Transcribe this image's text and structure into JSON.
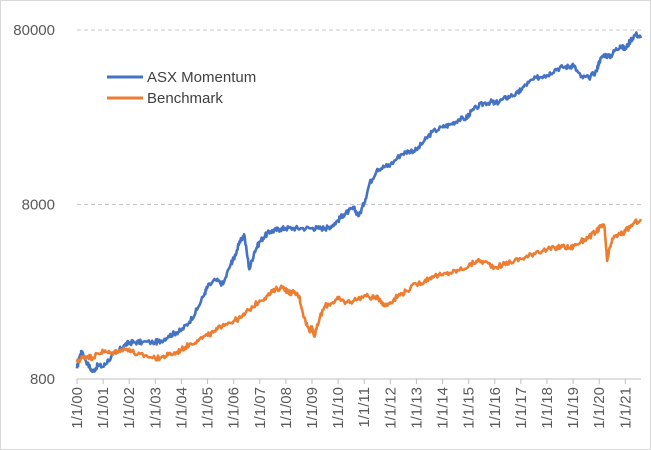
{
  "chart_data": {
    "type": "line",
    "title": "",
    "xlabel": "",
    "ylabel": "",
    "y_scale": "log",
    "ylim": [
      800,
      80000
    ],
    "y_ticks": [
      800,
      8000,
      80000
    ],
    "y_tick_labels": [
      "800",
      "8000",
      "80000"
    ],
    "x_ticks": [
      2000,
      2001,
      2002,
      2003,
      2004,
      2005,
      2006,
      2007,
      2008,
      2009,
      2010,
      2011,
      2012,
      2013,
      2014,
      2015,
      2016,
      2017,
      2018,
      2019,
      2020,
      2021
    ],
    "x_tick_labels": [
      "1/1/00",
      "1/1/01",
      "1/1/02",
      "1/1/03",
      "1/1/04",
      "1/1/05",
      "1/1/06",
      "1/1/07",
      "1/1/08",
      "1/1/09",
      "1/1/10",
      "1/1/11",
      "1/1/12",
      "1/1/13",
      "1/1/14",
      "1/1/15",
      "1/1/16",
      "1/1/17",
      "1/1/18",
      "1/1/19",
      "1/1/20",
      "1/1/21"
    ],
    "xlim": [
      2000,
      2021.6
    ],
    "grid": "horizontal dashed",
    "legend_position": "top-left",
    "series": [
      {
        "name": "ASX Momentum",
        "color": "#4472c4",
        "x": [
          2000.0,
          2000.1,
          2000.2,
          2000.4,
          2000.6,
          2000.8,
          2001.0,
          2001.2,
          2001.5,
          2001.8,
          2002.0,
          2002.2,
          2002.5,
          2003.0,
          2003.2,
          2003.5,
          2003.8,
          2004.0,
          2004.3,
          2004.6,
          2004.9,
          2005.0,
          2005.3,
          2005.6,
          2005.9,
          2006.0,
          2006.2,
          2006.4,
          2006.6,
          2006.8,
          2007.0,
          2007.2,
          2007.4,
          2007.6,
          2007.8,
          2008.0,
          2008.3,
          2008.6,
          2009.0,
          2009.2,
          2009.5,
          2009.6,
          2009.8,
          2010.0,
          2010.2,
          2010.4,
          2010.6,
          2010.8,
          2011.0,
          2011.2,
          2011.5,
          2011.8,
          2012.0,
          2012.4,
          2012.7,
          2013.0,
          2013.3,
          2013.6,
          2014.0,
          2014.3,
          2014.6,
          2014.9,
          2015.0,
          2015.3,
          2015.6,
          2015.9,
          2016.0,
          2016.3,
          2016.6,
          2016.9,
          2017.0,
          2017.3,
          2017.6,
          2017.9,
          2018.0,
          2018.3,
          2018.6,
          2018.9,
          2019.0,
          2019.3,
          2019.6,
          2019.9,
          2020.0,
          2020.2,
          2020.4,
          2020.6,
          2020.8,
          2021.0,
          2021.2,
          2021.4,
          2021.6
        ],
        "values": [
          920,
          1080,
          1150,
          980,
          880,
          960,
          940,
          1030,
          1120,
          1250,
          1290,
          1300,
          1300,
          1300,
          1320,
          1410,
          1480,
          1520,
          1700,
          2000,
          2500,
          2700,
          2950,
          2800,
          3700,
          3900,
          4700,
          5400,
          3400,
          4300,
          4900,
          5300,
          5600,
          5700,
          5800,
          5850,
          5850,
          5850,
          5850,
          5850,
          5850,
          5900,
          6100,
          6500,
          7000,
          7300,
          7600,
          6900,
          8200,
          10500,
          12800,
          13200,
          13500,
          15500,
          16200,
          16400,
          18500,
          20800,
          22200,
          23000,
          24500,
          25000,
          26200,
          28800,
          30500,
          31000,
          30200,
          32000,
          33500,
          34800,
          36500,
          40000,
          42500,
          44000,
          44000,
          47500,
          49000,
          49500,
          50500,
          43000,
          42500,
          46500,
          53000,
          58000,
          56000,
          61000,
          65000,
          62000,
          70000,
          76000,
          72000
        ]
      },
      {
        "name": "Benchmark",
        "color": "#ed7d31",
        "x": [
          2000.0,
          2000.2,
          2000.4,
          2000.6,
          2000.8,
          2001.0,
          2001.3,
          2001.6,
          2002.0,
          2002.3,
          2002.6,
          2003.0,
          2003.2,
          2003.5,
          2003.8,
          2004.0,
          2004.3,
          2004.6,
          2005.0,
          2005.3,
          2005.6,
          2006.0,
          2006.3,
          2006.6,
          2007.0,
          2007.3,
          2007.6,
          2007.9,
          2008.1,
          2008.3,
          2008.5,
          2008.7,
          2008.9,
          2009.0,
          2009.1,
          2009.3,
          2009.5,
          2009.8,
          2010.0,
          2010.3,
          2010.6,
          2011.0,
          2011.3,
          2011.6,
          2011.8,
          2012.0,
          2012.3,
          2012.6,
          2013.0,
          2013.3,
          2013.6,
          2014.0,
          2014.3,
          2014.6,
          2015.0,
          2015.3,
          2015.6,
          2016.0,
          2016.3,
          2016.6,
          2017.0,
          2017.3,
          2017.6,
          2018.0,
          2018.3,
          2018.6,
          2018.9,
          2019.0,
          2019.3,
          2019.6,
          2019.9,
          2020.0,
          2020.2,
          2020.3,
          2020.5,
          2020.8,
          2021.0,
          2021.3,
          2021.6
        ],
        "values": [
          1000,
          1060,
          1080,
          1060,
          1120,
          1150,
          1120,
          1170,
          1190,
          1100,
          1090,
          1050,
          1060,
          1100,
          1130,
          1180,
          1260,
          1330,
          1420,
          1500,
          1650,
          1720,
          1800,
          2000,
          2250,
          2400,
          2600,
          2700,
          2500,
          2500,
          2400,
          1800,
          1500,
          1600,
          1400,
          1800,
          2100,
          2200,
          2300,
          2200,
          2250,
          2400,
          2350,
          2300,
          2100,
          2200,
          2400,
          2550,
          2800,
          2900,
          3100,
          3150,
          3250,
          3350,
          3550,
          3800,
          3750,
          3500,
          3600,
          3750,
          3900,
          4050,
          4300,
          4400,
          4500,
          4600,
          4500,
          4600,
          4900,
          5200,
          5600,
          5900,
          6000,
          3800,
          5100,
          5400,
          5600,
          6200,
          6600
        ]
      }
    ]
  }
}
